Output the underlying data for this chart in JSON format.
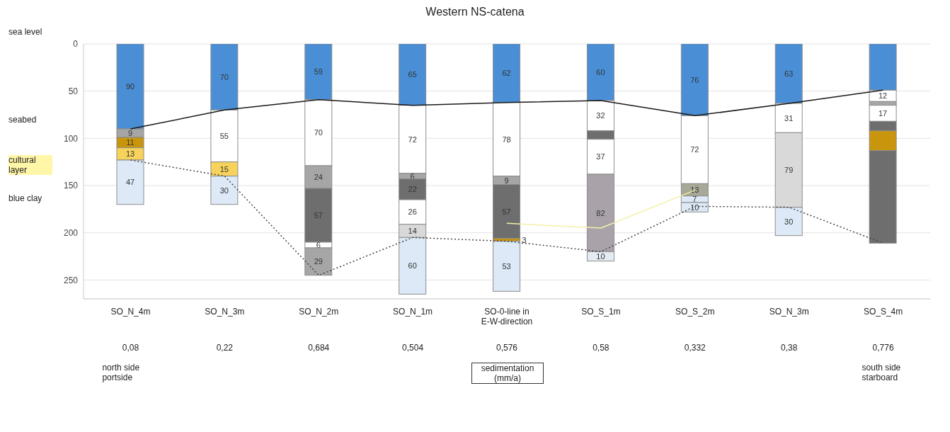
{
  "chart_data": {
    "type": "bar",
    "title": "Western NS-catena",
    "stacked": true,
    "categories": [
      "SO_N_4m",
      "SO_N_3m",
      "SO_N_2m",
      "SO_N_1m",
      "SO-0-line in E-W-direction",
      "SO_S_1m",
      "SO_S_2m",
      "SO_N_3m",
      "SO_S_4m"
    ],
    "ylim": [
      270,
      0
    ],
    "yticks": [
      0,
      50,
      100,
      150,
      200,
      250
    ],
    "grid": "y",
    "legend": false,
    "series": [
      {
        "values": [
          90,
          70,
          59,
          65,
          62,
          60,
          76,
          63,
          49
        ],
        "colors": [
          "#4a8fd6",
          "#4a8fd6",
          "#4a8fd6",
          "#4a8fd6",
          "#4a8fd6",
          "#4a8fd6",
          "#4a8fd6",
          "#4a8fd6",
          "#4a8fd6"
        ],
        "value_labels": [
          "90",
          "70",
          "59",
          "65",
          "62",
          "60",
          "76",
          "63",
          null
        ]
      },
      {
        "values": [
          9,
          55,
          70,
          72,
          78,
          32,
          72,
          31,
          12
        ],
        "colors": [
          "#a6a6a6",
          "#ffffff",
          "#ffffff",
          "#ffffff",
          "#ffffff",
          "#ffffff",
          "#ffffff",
          "#ffffff",
          "#ffffff"
        ],
        "value_labels": [
          "9",
          "55",
          "70",
          "72",
          "78",
          "32",
          "72",
          "31",
          "12"
        ]
      },
      {
        "values": [
          11,
          15,
          24,
          6,
          9,
          9,
          13,
          79,
          4
        ],
        "colors": [
          "#c9950c",
          "#f7d35c",
          "#a6a6a6",
          "#a6a6a6",
          "#a6a6a6",
          "#6e6e6e",
          "#a8a896",
          "#d9d9d9",
          "#a6a6a6"
        ],
        "value_labels": [
          "11",
          "15",
          "24",
          "6",
          "9",
          null,
          "13",
          "79",
          null
        ]
      },
      {
        "values": [
          13,
          30,
          57,
          22,
          57,
          37,
          7,
          30,
          17
        ],
        "colors": [
          "#f7d35c",
          "#dde9f7",
          "#6e6e6e",
          "#6e6e6e",
          "#6e6e6e",
          "#ffffff",
          "#dde9f7",
          "#dde9f7",
          "#ffffff"
        ],
        "value_labels": [
          "13",
          "30",
          "57",
          "22",
          "57",
          "37",
          "7",
          "30",
          "17"
        ]
      },
      {
        "values": [
          47,
          null,
          6,
          26,
          3,
          82,
          10,
          null,
          10
        ],
        "colors": [
          "#dde9f7",
          null,
          "#ffffff",
          "#ffffff",
          "#c9950c",
          "#a9a3a9",
          "#dde9f7",
          null,
          "#6e6e6e"
        ],
        "value_labels": [
          "47",
          null,
          "6",
          "26",
          "3",
          "82",
          "10",
          null,
          null
        ]
      },
      {
        "values": [
          null,
          null,
          29,
          14,
          53,
          10,
          null,
          null,
          21
        ],
        "colors": [
          null,
          null,
          "#a6a6a6",
          "#d9d9d9",
          "#dde9f7",
          "#e4ebf2",
          null,
          null,
          "#c9950c"
        ],
        "value_labels": [
          null,
          null,
          "29",
          "14",
          "53",
          "10",
          null,
          null,
          null
        ]
      },
      {
        "values": [
          null,
          null,
          null,
          60,
          null,
          null,
          null,
          null,
          98
        ],
        "colors": [
          null,
          null,
          null,
          "#dde9f7",
          null,
          null,
          null,
          null,
          "#6e6e6e"
        ],
        "value_labels": [
          null,
          null,
          null,
          "60",
          null,
          null,
          null,
          null,
          null
        ]
      },
      {
        "type": "line",
        "color": "#1a1a1a",
        "line_style": "solid",
        "marker": "none",
        "values": [
          90,
          70,
          59,
          65,
          62,
          60,
          76,
          63,
          49
        ]
      },
      {
        "type": "line",
        "color": "#444444",
        "line_style": "dotted",
        "marker": "none",
        "values": [
          123,
          140,
          245,
          205,
          209,
          220,
          172,
          173,
          211
        ]
      },
      {
        "type": "line",
        "color": "#f4f0a8",
        "line_style": "solid",
        "marker": "none",
        "values": [
          null,
          null,
          null,
          null,
          190,
          195,
          155,
          null,
          null
        ]
      }
    ],
    "annotations": [
      "sea level",
      "seabed",
      "cultural layer",
      "blue clay",
      "0,08",
      "0,22",
      "0,684",
      "0,504",
      "0,576",
      "0,58",
      "0,332",
      "0,38",
      "0,776",
      "sedimentation (mm/a)",
      "north side portside",
      "south side starboard"
    ]
  }
}
